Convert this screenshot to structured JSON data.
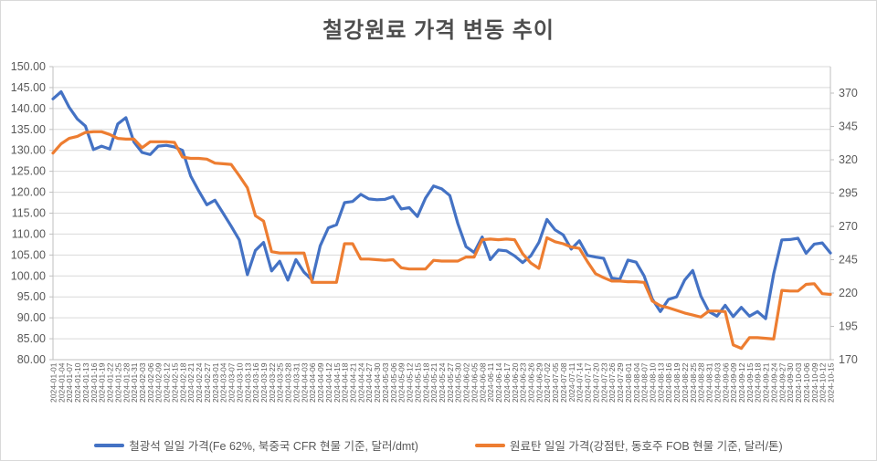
{
  "title": "철강원료 가격 변동 추이",
  "colors": {
    "iron_ore_line": "#4472C4",
    "coking_coal_line": "#ED7D31",
    "gridline": "#D9D9D9",
    "axis_line": "#BFBFBF",
    "axis_text": "#595959",
    "title_text": "#4d4d4d"
  },
  "legend": {
    "items": [
      {
        "label": "철광석 일일 가격(Fe 62%, 북중국 CFR 현물 기준, 달러/dmt)",
        "color": "#4472C4"
      },
      {
        "label": "원료탄 일일 가격(강점탄, 동호주 FOB 현물 기준, 달러/톤)",
        "color": "#ED7D31"
      }
    ]
  },
  "chart_data": {
    "type": "line",
    "title": "철강원료 가격 변동 추이",
    "grid": true,
    "legend_position": "bottom",
    "categories": [
      "2024-01-01",
      "2024-01-04",
      "2024-01-07",
      "2024-01-10",
      "2024-01-13",
      "2024-01-16",
      "2024-01-19",
      "2024-01-22",
      "2024-01-25",
      "2024-01-28",
      "2024-01-31",
      "2024-02-03",
      "2024-02-06",
      "2024-02-09",
      "2024-02-12",
      "2024-02-15",
      "2024-02-18",
      "2024-02-21",
      "2024-02-24",
      "2024-02-27",
      "2024-03-01",
      "2024-03-04",
      "2024-03-07",
      "2024-03-10",
      "2024-03-13",
      "2024-03-16",
      "2024-03-19",
      "2024-03-22",
      "2024-03-25",
      "2024-03-28",
      "2024-03-31",
      "2024-04-03",
      "2024-04-06",
      "2024-04-09",
      "2024-04-12",
      "2024-04-15",
      "2024-04-18",
      "2024-04-21",
      "2024-04-24",
      "2024-04-27",
      "2024-04-30",
      "2024-05-03",
      "2024-05-06",
      "2024-05-09",
      "2024-05-12",
      "2024-05-15",
      "2024-05-18",
      "2024-05-21",
      "2024-05-24",
      "2024-05-27",
      "2024-05-30",
      "2024-06-02",
      "2024-06-05",
      "2024-06-08",
      "2024-06-11",
      "2024-06-14",
      "2024-06-17",
      "2024-06-20",
      "2024-06-23",
      "2024-06-26",
      "2024-06-29",
      "2024-07-02",
      "2024-07-05",
      "2024-07-08",
      "2024-07-11",
      "2024-07-14",
      "2024-07-17",
      "2024-07-20",
      "2024-07-23",
      "2024-07-26",
      "2024-07-29",
      "2024-08-01",
      "2024-08-04",
      "2024-08-07",
      "2024-08-10",
      "2024-08-13",
      "2024-08-16",
      "2024-08-19",
      "2024-08-22",
      "2024-08-25",
      "2024-08-28",
      "2024-08-31",
      "2024-09-03",
      "2024-09-06",
      "2024-09-09",
      "2024-09-12",
      "2024-09-15",
      "2024-09-18",
      "2024-09-21",
      "2024-09-24",
      "2024-09-27",
      "2024-09-30",
      "2024-10-03",
      "2024-10-06",
      "2024-10-09",
      "2024-10-12",
      "2024-10-15"
    ],
    "series": [
      {
        "name": "철광석 일일 가격(Fe 62%, 북중국 CFR 현물 기준, 달러/dmt)",
        "axis": "left",
        "color": "#4472C4",
        "values": [
          142.3,
          144.0,
          140.3,
          137.5,
          135.8,
          130.2,
          131.0,
          130.3,
          136.3,
          137.8,
          132.0,
          129.5,
          129.0,
          131.0,
          131.2,
          130.8,
          130.0,
          123.9,
          120.3,
          117.0,
          118.1,
          115.0,
          111.9,
          108.6,
          100.3,
          106.1,
          108.0,
          101.2,
          103.5,
          99.0,
          103.9,
          100.9,
          99.0,
          107.2,
          111.5,
          112.2,
          117.5,
          117.8,
          119.5,
          118.4,
          118.2,
          118.3,
          119.0,
          116.0,
          116.3,
          114.2,
          118.6,
          121.5,
          120.8,
          119.2,
          112.5,
          107.0,
          105.6,
          109.3,
          103.9,
          106.2,
          106.0,
          104.8,
          103.2,
          104.8,
          108.0,
          113.5,
          111.0,
          109.8,
          106.4,
          108.4,
          104.9,
          104.5,
          104.2,
          99.5,
          99.2,
          103.8,
          103.3,
          100.0,
          94.5,
          91.5,
          94.4,
          95.0,
          99.0,
          101.3,
          95.2,
          91.5,
          90.4,
          93.0,
          90.3,
          92.5,
          90.4,
          91.5,
          89.8,
          100.5,
          108.6,
          108.7,
          109.0,
          105.4,
          107.6,
          107.9,
          105.5
        ]
      },
      {
        "name": "원료탄 일일 가격(강점탄, 동호주 FOB 현물 기준, 달러/톤)",
        "axis": "right",
        "color": "#ED7D31",
        "values": [
          325,
          332,
          336,
          337.5,
          340.5,
          341,
          341,
          339,
          336,
          335.5,
          335.5,
          329,
          333.5,
          333.5,
          333.5,
          333,
          322,
          321,
          321,
          320.5,
          317.5,
          317,
          316.5,
          308,
          299,
          278,
          274,
          251,
          250,
          250,
          250,
          250,
          228,
          228,
          228,
          228,
          257,
          257,
          245.5,
          245.5,
          245,
          244.5,
          245,
          239,
          238,
          238,
          238,
          244.5,
          244,
          244,
          244,
          247,
          247,
          260,
          260.5,
          260,
          260.5,
          260,
          249.5,
          242.5,
          238.5,
          261.5,
          258.5,
          257,
          254.5,
          253.5,
          243.5,
          234.5,
          231.5,
          229,
          229,
          228.5,
          228.5,
          228,
          214,
          210.5,
          209,
          207,
          205,
          203.5,
          202,
          206.5,
          206.5,
          206,
          181,
          178.5,
          186.5,
          186.5,
          186,
          185.5,
          222,
          221.5,
          221.5,
          226.5,
          227,
          219.5,
          219
        ]
      }
    ],
    "left_axis": {
      "min": 80,
      "max": 150,
      "step": 5,
      "tick_labels": [
        "150.00",
        "145.00",
        "140.00",
        "135.00",
        "130.00",
        "125.00",
        "120.00",
        "115.00",
        "110.00",
        "105.00",
        "100.00",
        "95.00",
        "90.00",
        "85.00",
        "80.00"
      ]
    },
    "right_axis": {
      "min": 170,
      "max": 370,
      "step": 25,
      "tick_labels": [
        "370",
        "345",
        "320",
        "295",
        "270",
        "245",
        "220",
        "195",
        "170"
      ]
    }
  }
}
